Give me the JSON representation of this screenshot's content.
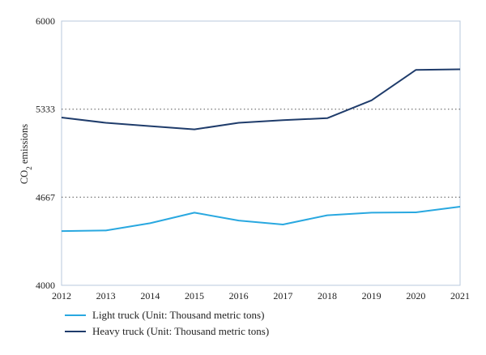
{
  "chart_data": {
    "type": "line",
    "x": [
      2012,
      2013,
      2014,
      2015,
      2016,
      2017,
      2018,
      2019,
      2020,
      2021
    ],
    "x_tick_labels": [
      "2012",
      "2013",
      "2014",
      "2015",
      "2016",
      "2017",
      "2018",
      "2019",
      "2020",
      "2021"
    ],
    "ylim": [
      4000,
      6000
    ],
    "y_ticks": [
      4000,
      4667,
      5333,
      6000
    ],
    "y_tick_labels": [
      "4000",
      "4667",
      "5333",
      "6000"
    ],
    "ylabel": {
      "prefix": "CO",
      "subscript": "2",
      "suffix": " emissions"
    },
    "xlabel": "",
    "title": "",
    "dotted_reference_lines": [
      4667,
      5333
    ],
    "grid": false,
    "legend_position": "bottom-left",
    "series": [
      {
        "name": "Light truck (Unit: Thousand metric tons)",
        "color": "#29a8e0",
        "values": [
          4410,
          4415,
          4470,
          4550,
          4490,
          4460,
          4530,
          4550,
          4552,
          4595
        ]
      },
      {
        "name": "Heavy truck (Unit: Thousand metric tons)",
        "color": "#1f3c6b",
        "values": [
          5270,
          5230,
          5205,
          5180,
          5230,
          5250,
          5265,
          5400,
          5630,
          5635
        ]
      }
    ]
  }
}
